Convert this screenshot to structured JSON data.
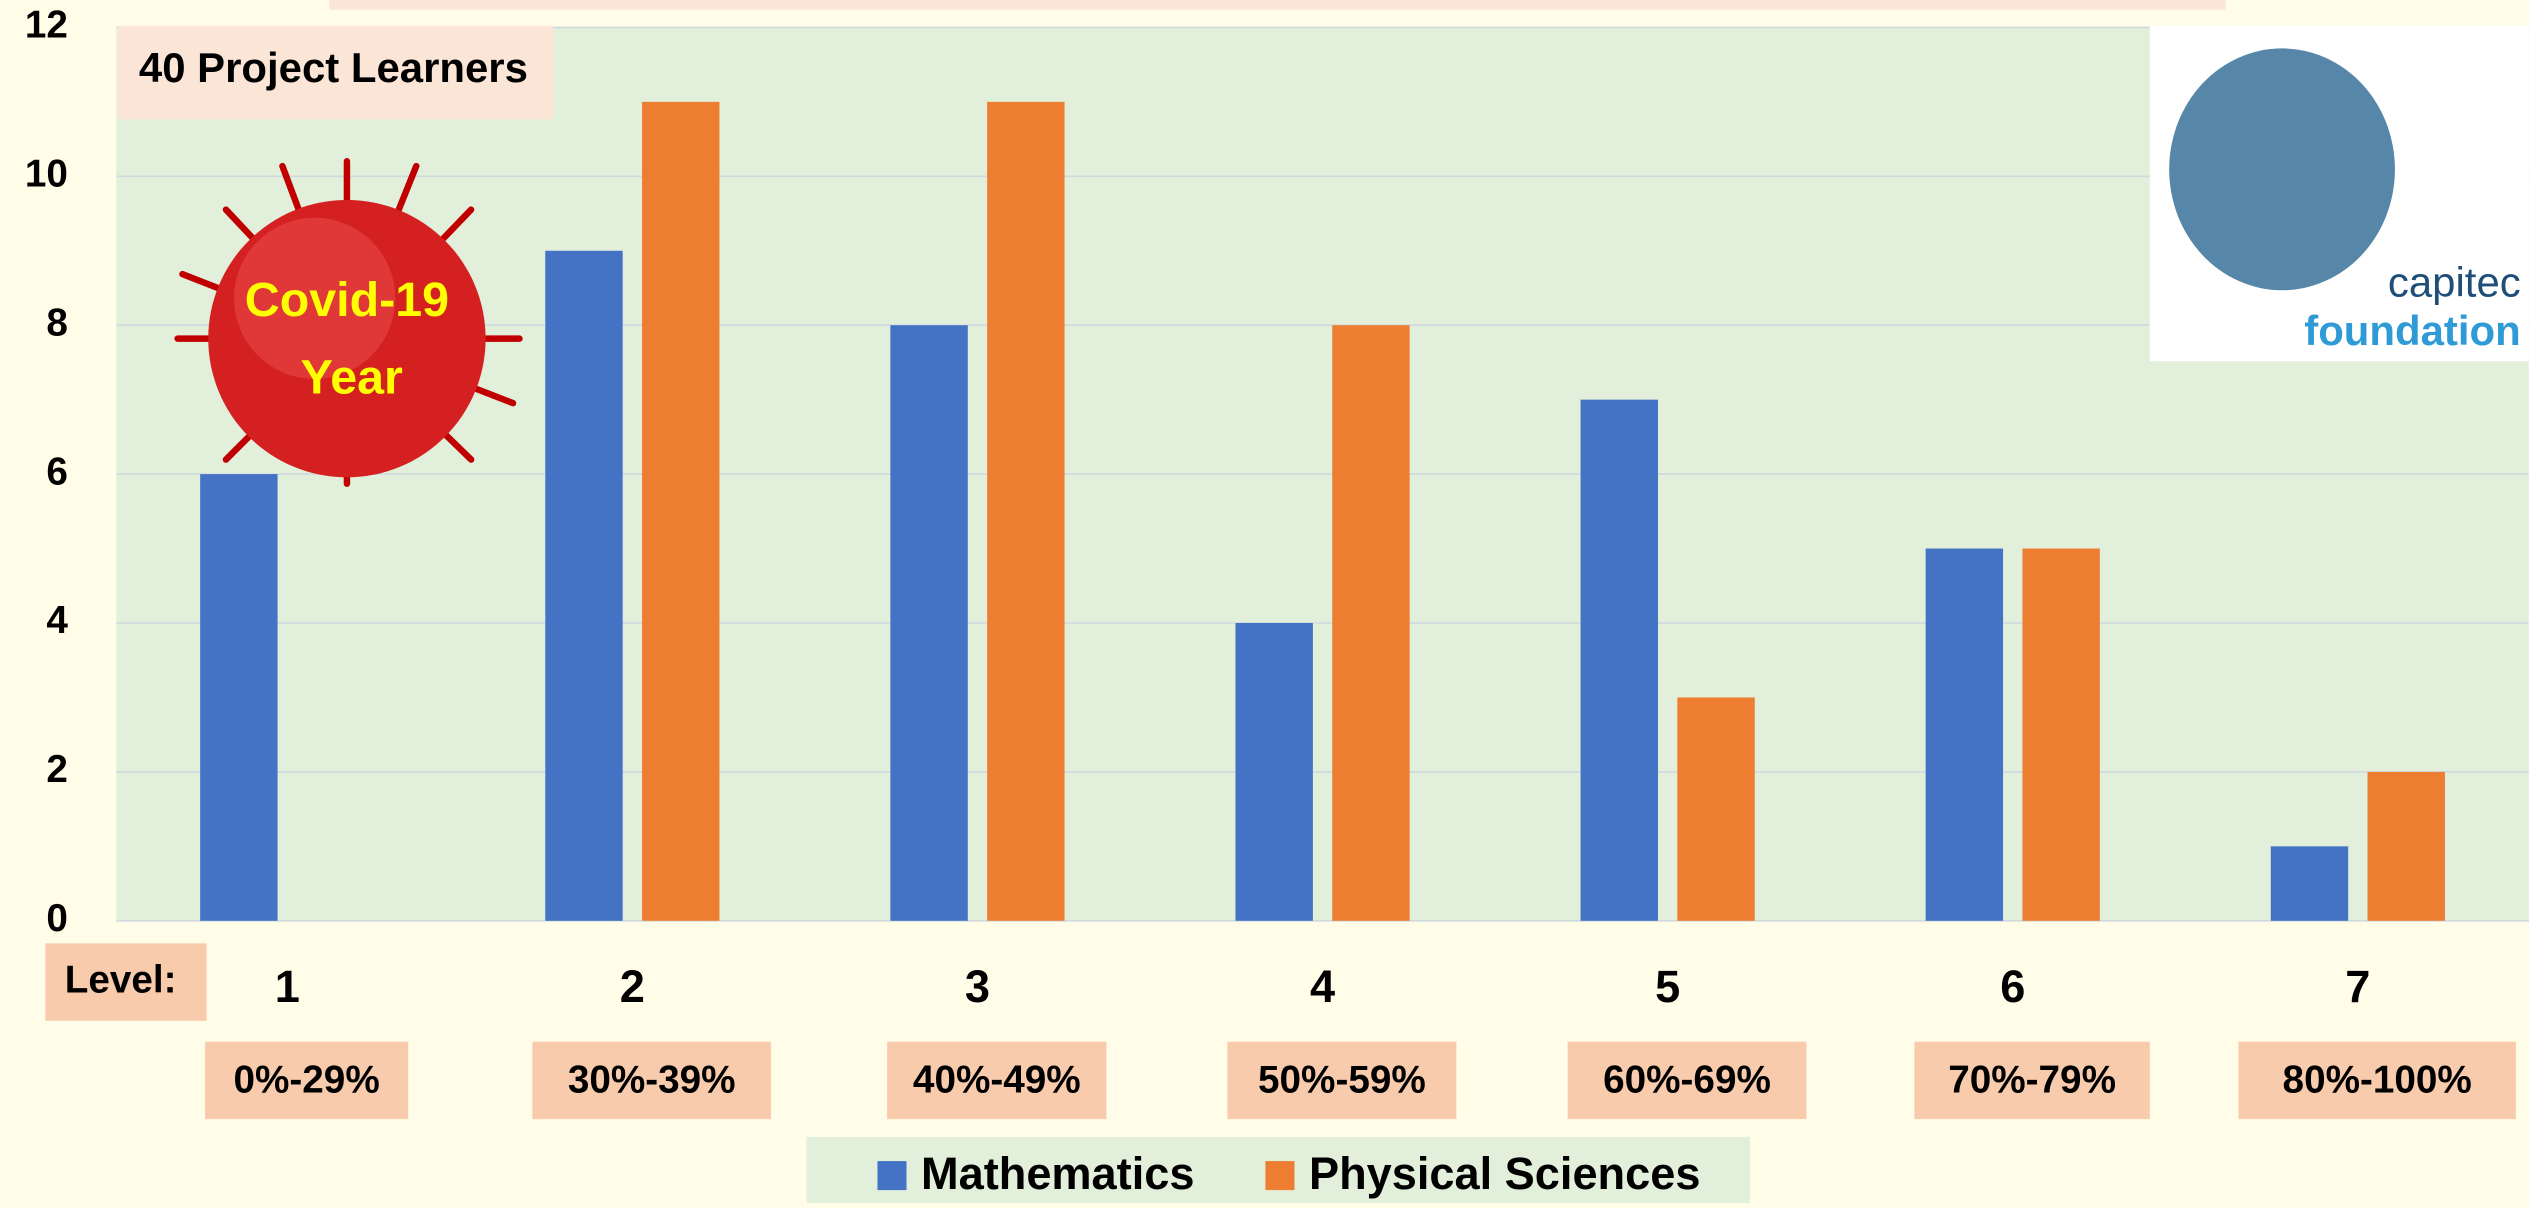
{
  "chart_data": {
    "type": "bar",
    "title": "40 Project Learners",
    "annotations": [
      "Covid-19",
      "Year"
    ],
    "logo": [
      "capitec",
      "foundation"
    ],
    "x_label": "Level:",
    "categories": [
      "1",
      "2",
      "3",
      "4",
      "5",
      "6",
      "7"
    ],
    "range_labels": [
      "0%-29%",
      "30%-39%",
      "40%-49%",
      "50%-59%",
      "60%-69%",
      "70%-79%",
      "80%-100%"
    ],
    "series": [
      {
        "name": "Mathematics",
        "color": "#4472c4",
        "values": [
          6,
          9,
          8,
          4,
          7,
          5,
          1
        ]
      },
      {
        "name": "Physical Sciences",
        "color": "#ed7d31",
        "values": [
          0,
          11,
          11,
          8,
          3,
          5,
          2
        ]
      }
    ],
    "ylim": [
      0,
      12
    ],
    "yticks": [
      0,
      2,
      4,
      6,
      8,
      10,
      12
    ],
    "grid": true
  }
}
